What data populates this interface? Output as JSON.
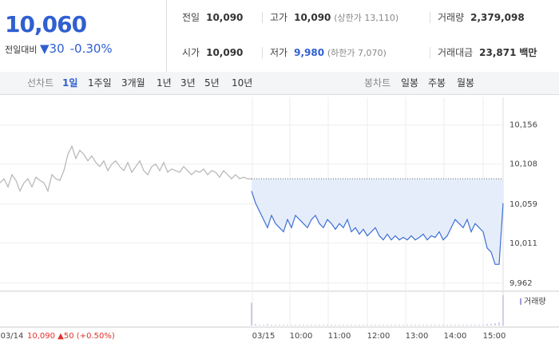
{
  "quote": {
    "price": "10,060",
    "change_label": "전일대비",
    "change": "30",
    "change_pct": "-0.30%",
    "stats": [
      [
        {
          "label": "전일",
          "value": "10,090"
        },
        {
          "label": "고가",
          "value": "10,090",
          "note": "(상한가 13,110)"
        },
        {
          "label": "거래량",
          "value": "2,379,098"
        }
      ],
      [
        {
          "label": "시가",
          "value": "10,090"
        },
        {
          "label": "저가",
          "value": "9,980",
          "note": "(하한가 7,070)"
        },
        {
          "label": "거래대금",
          "value": "23,871",
          "unit": "백만"
        }
      ]
    ]
  },
  "tabs": {
    "line_label": "선차트",
    "line_items": [
      "1일",
      "1주일",
      "3개월",
      "1년",
      "3년",
      "5년",
      "10년"
    ],
    "candle_label": "봉차트",
    "candle_items": [
      "일봉",
      "주봉",
      "월봉"
    ]
  },
  "chart_data": {
    "type": "line",
    "ylim": [
      9952,
      10190
    ],
    "yticks": [
      {
        "value": 10156,
        "label": "10,156"
      },
      {
        "value": 10108,
        "label": "10,108"
      },
      {
        "value": 10059,
        "label": "10,059"
      },
      {
        "value": 10011,
        "label": "10,011"
      },
      {
        "value": 9962,
        "label": "9,962"
      }
    ],
    "x_labels": [
      "03/14",
      "03/15",
      "10:00",
      "11:00",
      "12:00",
      "13:00",
      "14:00",
      "15:00"
    ],
    "reference": 10090,
    "series": [
      {
        "color": "#b5b5b5",
        "values": [
          10085,
          10090,
          10080,
          10095,
          10088,
          10075,
          10085,
          10090,
          10080,
          10092,
          10088,
          10085,
          10075,
          10095,
          10090,
          10088,
          10100,
          10120,
          10130,
          10115,
          10125,
          10120,
          10112,
          10118,
          10110,
          10105,
          10112,
          10100,
          10108,
          10112,
          10105,
          10100,
          10110,
          10098,
          10105,
          10112,
          10100,
          10095,
          10105,
          10108,
          10100,
          10110,
          10098,
          10102,
          10100,
          10098,
          10105,
          10100,
          10095,
          10100,
          10098,
          10102,
          10095,
          10100,
          10098,
          10092,
          10100,
          10095,
          10090,
          10095,
          10090,
          10092,
          10090,
          10090
        ]
      },
      {
        "color": "#3d6fd6",
        "values": [
          10075,
          10060,
          10050,
          10040,
          10030,
          10045,
          10035,
          10030,
          10025,
          10040,
          10030,
          10045,
          10040,
          10035,
          10030,
          10040,
          10045,
          10035,
          10030,
          10040,
          10035,
          10028,
          10035,
          10030,
          10040,
          10025,
          10030,
          10022,
          10028,
          10020,
          10025,
          10030,
          10020,
          10015,
          10022,
          10015,
          10020,
          10015,
          10018,
          10015,
          10020,
          10015,
          10018,
          10022,
          10015,
          10020,
          10018,
          10025,
          10015,
          10020,
          10030,
          10040,
          10035,
          10030,
          10040,
          10025,
          10035,
          10030,
          10025,
          10005,
          10000,
          9985,
          9985,
          10060
        ]
      }
    ],
    "volume_label": "거래량",
    "volume_lim": [
      0,
      40
    ],
    "volume": [
      30,
      2,
      1,
      1,
      2,
      1,
      1,
      1,
      1,
      1,
      1,
      1,
      1,
      1,
      1,
      1,
      1,
      1,
      1,
      1,
      1,
      1,
      1,
      1,
      1,
      1,
      1,
      1,
      1,
      1,
      1,
      1,
      1,
      1,
      1,
      1,
      1,
      1,
      1,
      1,
      1,
      1,
      1,
      1,
      1,
      1,
      1,
      1,
      1,
      1,
      1,
      1,
      1,
      1,
      1,
      1,
      1,
      1,
      1,
      2,
      2,
      3,
      4,
      40
    ],
    "prev_day": {
      "close": "10,090",
      "change": "50",
      "change_pct": "(+0.50%)"
    }
  }
}
